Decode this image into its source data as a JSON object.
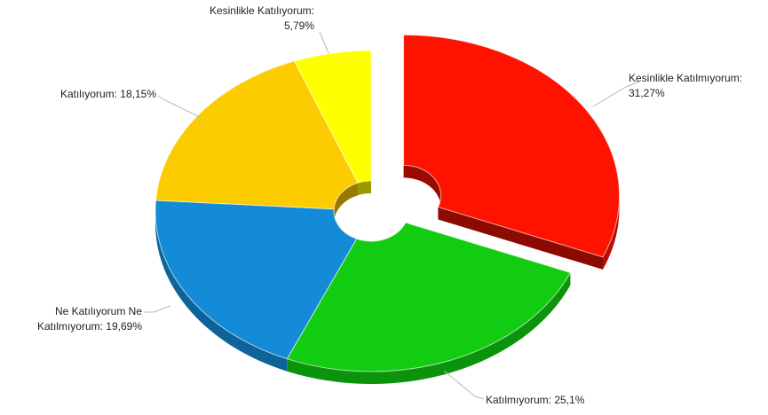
{
  "chart_data": {
    "type": "pie",
    "variant": "3d-donut-exploded",
    "title": "",
    "categories": [
      "Kesinlikle Katılmıyorum",
      "Katılmıyorum",
      "Ne Katılıyorum Ne Katılmıyorum",
      "Katılıyorum",
      "Kesinlikle Katılıyorum"
    ],
    "values": [
      31.27,
      25.1,
      19.69,
      18.15,
      5.79
    ],
    "colors": [
      "#ff1200",
      "#11cc11",
      "#138bd6",
      "#fccc00",
      "#ffff00"
    ],
    "exploded": [
      true,
      false,
      false,
      false,
      false
    ],
    "labels": [
      {
        "lines": [
          "Kesinlikle Katılmıyorum:",
          "31,27%"
        ]
      },
      {
        "lines": [
          "Katılmıyorum: 25,1%"
        ]
      },
      {
        "lines": [
          "Ne Katılıyorum Ne",
          "Katılmıyorum: 19,69%"
        ]
      },
      {
        "lines": [
          "Katılıyorum: 18,15%"
        ]
      },
      {
        "lines": [
          "Kesinlikle Katılıyorum:",
          "5,79%"
        ]
      }
    ]
  }
}
